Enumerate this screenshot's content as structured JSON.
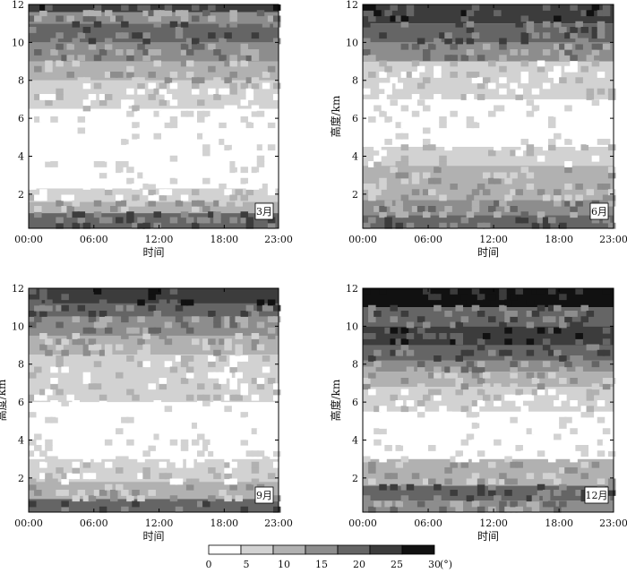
{
  "chart_data": {
    "type": "heatmap",
    "colorbar": {
      "bounds": [
        0,
        5,
        10,
        15,
        20,
        25,
        30
      ],
      "tick_labels": [
        "0",
        "5",
        "10",
        "15",
        "20",
        "25",
        "30"
      ],
      "unit": "(°)",
      "colors": [
        "#ffffff",
        "#d2d2d2",
        "#b1b1b1",
        "#8d8d8d",
        "#656565",
        "#3c3c3c",
        "#111111"
      ]
    },
    "x_ticks": [
      "00:00",
      "06:00",
      "12:00",
      "18:00",
      "23:00"
    ],
    "x_tick_hours": [
      0,
      6,
      12,
      18,
      23
    ],
    "y_ticks": [
      "2",
      "4",
      "6",
      "8",
      "10",
      "12"
    ],
    "y_tick_values": [
      2,
      4,
      6,
      8,
      10,
      12
    ],
    "xlim_hours": [
      0,
      23
    ],
    "ylim_km": [
      0.2,
      12
    ],
    "panels": [
      {
        "month": "3月",
        "xlabel": "时间",
        "ylabel": "",
        "profile_km": [
          [
            0.2,
            1.0,
            20
          ],
          [
            1.0,
            1.6,
            10
          ],
          [
            1.6,
            2.3,
            5
          ],
          [
            2.3,
            6.5,
            0
          ],
          [
            6.5,
            8.0,
            5
          ],
          [
            8.0,
            9.0,
            10
          ],
          [
            9.0,
            10.0,
            15
          ],
          [
            10.0,
            11.0,
            20
          ],
          [
            11.0,
            11.6,
            15
          ],
          [
            11.6,
            12.0,
            25
          ]
        ]
      },
      {
        "month": "6月",
        "xlabel": "时间",
        "ylabel": "高度/km",
        "profile_km": [
          [
            0.2,
            0.9,
            20
          ],
          [
            0.9,
            1.7,
            15
          ],
          [
            1.7,
            3.5,
            10
          ],
          [
            3.5,
            4.5,
            5
          ],
          [
            4.5,
            7.0,
            0
          ],
          [
            7.0,
            9.0,
            5
          ],
          [
            9.0,
            10.0,
            15
          ],
          [
            10.0,
            11.0,
            20
          ],
          [
            11.0,
            12.0,
            25
          ]
        ]
      },
      {
        "month": "9月",
        "xlabel": "时间",
        "ylabel": "高度/km",
        "profile_km": [
          [
            0.2,
            0.9,
            20
          ],
          [
            0.9,
            1.8,
            10
          ],
          [
            1.8,
            3.0,
            5
          ],
          [
            3.0,
            6.0,
            0
          ],
          [
            6.0,
            8.5,
            5
          ],
          [
            8.5,
            9.5,
            10
          ],
          [
            9.5,
            10.5,
            15
          ],
          [
            10.5,
            11.2,
            20
          ],
          [
            11.2,
            12.0,
            25
          ]
        ]
      },
      {
        "month": "12月",
        "xlabel": "时间",
        "ylabel": "高度/km",
        "profile_km": [
          [
            0.2,
            0.8,
            15
          ],
          [
            0.8,
            1.6,
            20
          ],
          [
            1.6,
            3.0,
            10
          ],
          [
            3.0,
            5.5,
            0
          ],
          [
            5.5,
            6.8,
            5
          ],
          [
            6.8,
            7.6,
            10
          ],
          [
            7.6,
            8.2,
            15
          ],
          [
            8.2,
            9.0,
            20
          ],
          [
            9.0,
            10.0,
            25
          ],
          [
            10.0,
            11.0,
            20
          ],
          [
            11.0,
            12.0,
            30
          ]
        ]
      }
    ]
  }
}
